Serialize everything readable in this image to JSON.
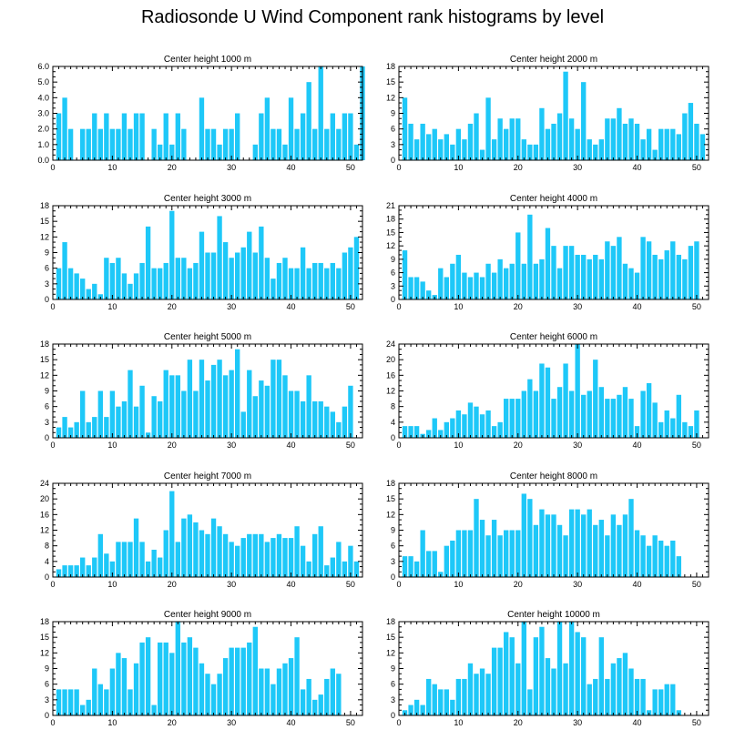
{
  "title": "Radiosonde U Wind Component rank histograms by level",
  "bar_color": "#1ec8f8",
  "chart_data": [
    {
      "type": "bar",
      "title": "Center height 1000 m",
      "xlim": [
        0,
        52
      ],
      "ylim": [
        0,
        6
      ],
      "xticks": [
        0,
        10,
        20,
        30,
        40,
        50
      ],
      "yticks": [
        0,
        1,
        2,
        3,
        4,
        5,
        6
      ],
      "ytick_labels": [
        "0.0",
        "1.0",
        "2.0",
        "3.0",
        "4.0",
        "5.0",
        "6.0"
      ],
      "values": [
        3,
        4,
        2,
        0,
        2,
        2,
        3,
        2,
        3,
        2,
        2,
        3,
        2,
        3,
        3,
        0,
        2,
        1,
        3,
        1,
        3,
        2,
        0,
        0,
        4,
        2,
        2,
        1,
        2,
        2,
        3,
        0,
        0,
        1,
        3,
        4,
        2,
        2,
        1,
        4,
        2,
        3,
        5,
        2,
        6,
        2,
        3,
        2,
        3,
        3,
        1,
        6
      ]
    },
    {
      "type": "bar",
      "title": "Center height 2000 m",
      "xlim": [
        0,
        52
      ],
      "ylim": [
        0,
        18
      ],
      "xticks": [
        0,
        10,
        20,
        30,
        40,
        50
      ],
      "yticks": [
        0,
        3,
        6,
        9,
        12,
        15,
        18
      ],
      "ytick_labels": [
        "0",
        "3",
        "6",
        "9",
        "12",
        "15",
        "18"
      ],
      "values": [
        12,
        7,
        4,
        7,
        5,
        6,
        4,
        5,
        3,
        6,
        4,
        7,
        9,
        2,
        12,
        4,
        8,
        6,
        8,
        8,
        4,
        3,
        3,
        10,
        6,
        7,
        9,
        17,
        8,
        6,
        15,
        4,
        3,
        4,
        8,
        8,
        10,
        7,
        8,
        7,
        4,
        6,
        2,
        6,
        6,
        6,
        5,
        9,
        11,
        7,
        5
      ]
    },
    {
      "type": "bar",
      "title": "Center height 3000 m",
      "xlim": [
        0,
        52
      ],
      "ylim": [
        0,
        18
      ],
      "xticks": [
        0,
        10,
        20,
        30,
        40,
        50
      ],
      "yticks": [
        0,
        3,
        6,
        9,
        12,
        15,
        18
      ],
      "ytick_labels": [
        "0",
        "3",
        "6",
        "9",
        "12",
        "15",
        "18"
      ],
      "values": [
        6,
        11,
        6,
        5,
        4,
        2,
        3,
        1,
        8,
        7,
        8,
        5,
        3,
        5,
        7,
        14,
        6,
        6,
        7,
        17,
        8,
        8,
        6,
        7,
        13,
        9,
        9,
        16,
        11,
        8,
        9,
        10,
        13,
        9,
        14,
        8,
        4,
        7,
        8,
        6,
        6,
        10,
        6,
        7,
        7,
        6,
        7,
        6,
        9,
        10,
        12
      ]
    },
    {
      "type": "bar",
      "title": "Center height 4000 m",
      "xlim": [
        0,
        52
      ],
      "ylim": [
        0,
        21
      ],
      "xticks": [
        0,
        10,
        20,
        30,
        40,
        50
      ],
      "yticks": [
        0,
        3,
        6,
        9,
        12,
        15,
        18,
        21
      ],
      "ytick_labels": [
        "0",
        "3",
        "6",
        "9",
        "12",
        "15",
        "18",
        "21"
      ],
      "values": [
        11,
        5,
        5,
        4,
        2,
        1,
        7,
        5,
        8,
        10,
        6,
        5,
        6,
        5,
        8,
        6,
        9,
        7,
        8,
        15,
        8,
        19,
        8,
        9,
        16,
        12,
        7,
        12,
        12,
        10,
        10,
        9,
        10,
        9,
        13,
        12,
        14,
        8,
        7,
        6,
        14,
        13,
        10,
        9,
        11,
        13,
        10,
        9,
        12,
        13
      ]
    },
    {
      "type": "bar",
      "title": "Center height 5000 m",
      "xlim": [
        0,
        52
      ],
      "ylim": [
        0,
        18
      ],
      "xticks": [
        0,
        10,
        20,
        30,
        40,
        50
      ],
      "yticks": [
        0,
        3,
        6,
        9,
        12,
        15,
        18
      ],
      "ytick_labels": [
        "0",
        "3",
        "6",
        "9",
        "12",
        "15",
        "18"
      ],
      "values": [
        2,
        4,
        2,
        3,
        9,
        3,
        4,
        9,
        4,
        9,
        6,
        7,
        13,
        6,
        10,
        1,
        8,
        7,
        13,
        12,
        12,
        9,
        15,
        9,
        15,
        11,
        14,
        15,
        12,
        13,
        17,
        5,
        13,
        8,
        11,
        10,
        15,
        15,
        12,
        9,
        9,
        7,
        12,
        7,
        7,
        6,
        5,
        3,
        6,
        10
      ]
    },
    {
      "type": "bar",
      "title": "Center height 6000 m",
      "xlim": [
        0,
        52
      ],
      "ylim": [
        0,
        24
      ],
      "xticks": [
        0,
        10,
        20,
        30,
        40,
        50
      ],
      "yticks": [
        0,
        4,
        8,
        12,
        16,
        20,
        24
      ],
      "ytick_labels": [
        "0",
        "4",
        "8",
        "12",
        "16",
        "20",
        "24"
      ],
      "values": [
        3,
        3,
        3,
        1,
        2,
        5,
        2,
        4,
        5,
        7,
        6,
        9,
        8,
        6,
        7,
        3,
        4,
        10,
        10,
        10,
        12,
        15,
        12,
        19,
        18,
        10,
        13,
        19,
        12,
        24,
        11,
        12,
        20,
        13,
        10,
        10,
        11,
        13,
        10,
        3,
        12,
        14,
        9,
        4,
        7,
        5,
        11,
        4,
        3,
        7
      ]
    },
    {
      "type": "bar",
      "title": "Center height 7000 m",
      "xlim": [
        0,
        52
      ],
      "ylim": [
        0,
        24
      ],
      "xticks": [
        0,
        10,
        20,
        30,
        40,
        50
      ],
      "yticks": [
        0,
        4,
        8,
        12,
        16,
        20,
        24
      ],
      "ytick_labels": [
        "0",
        "4",
        "8",
        "12",
        "16",
        "20",
        "24"
      ],
      "values": [
        2,
        3,
        3,
        3,
        5,
        3,
        5,
        11,
        6,
        4,
        9,
        9,
        9,
        15,
        9,
        4,
        7,
        5,
        12,
        22,
        9,
        15,
        16,
        14,
        12,
        11,
        15,
        13,
        11,
        9,
        8,
        10,
        11,
        11,
        11,
        9,
        10,
        11,
        10,
        10,
        13,
        8,
        4,
        11,
        13,
        3,
        5,
        9,
        4,
        8,
        4
      ]
    },
    {
      "type": "bar",
      "title": "Center height 8000 m",
      "xlim": [
        0,
        52
      ],
      "ylim": [
        0,
        18
      ],
      "xticks": [
        0,
        10,
        20,
        30,
        40,
        50
      ],
      "yticks": [
        0,
        3,
        6,
        9,
        12,
        15,
        18
      ],
      "ytick_labels": [
        "0",
        "3",
        "6",
        "9",
        "12",
        "15",
        "18"
      ],
      "values": [
        4,
        4,
        3,
        9,
        5,
        5,
        1,
        6,
        7,
        9,
        9,
        9,
        15,
        11,
        8,
        11,
        8,
        9,
        9,
        9,
        16,
        15,
        10,
        13,
        12,
        12,
        10,
        8,
        13,
        13,
        12,
        13,
        10,
        11,
        8,
        12,
        10,
        12,
        15,
        9,
        8,
        6,
        8,
        7,
        6,
        7,
        4
      ]
    },
    {
      "type": "bar",
      "title": "Center height 9000 m",
      "xlim": [
        0,
        52
      ],
      "ylim": [
        0,
        18
      ],
      "xticks": [
        0,
        10,
        20,
        30,
        40,
        50
      ],
      "yticks": [
        0,
        3,
        6,
        9,
        12,
        15,
        18
      ],
      "ytick_labels": [
        "0",
        "3",
        "6",
        "9",
        "12",
        "15",
        "18"
      ],
      "values": [
        5,
        5,
        5,
        5,
        2,
        3,
        9,
        6,
        5,
        9,
        12,
        11,
        5,
        10,
        14,
        15,
        2,
        14,
        14,
        12,
        18,
        14,
        15,
        13,
        10,
        8,
        6,
        8,
        11,
        13,
        13,
        13,
        14,
        17,
        9,
        9,
        6,
        9,
        10,
        11,
        15,
        5,
        7,
        3,
        4,
        7,
        9,
        8
      ]
    },
    {
      "type": "bar",
      "title": "Center height 10000 m",
      "xlim": [
        0,
        52
      ],
      "ylim": [
        0,
        18
      ],
      "xticks": [
        0,
        10,
        20,
        30,
        40,
        50
      ],
      "yticks": [
        0,
        3,
        6,
        9,
        12,
        15,
        18
      ],
      "ytick_labels": [
        "0",
        "3",
        "6",
        "9",
        "12",
        "15",
        "18"
      ],
      "values": [
        1,
        2,
        3,
        2,
        7,
        6,
        5,
        5,
        3,
        7,
        7,
        10,
        8,
        9,
        8,
        13,
        13,
        16,
        15,
        10,
        18,
        5,
        15,
        17,
        11,
        9,
        18,
        10,
        18,
        16,
        15,
        6,
        7,
        15,
        7,
        10,
        11,
        12,
        9,
        7,
        7,
        1,
        5,
        5,
        6,
        6,
        1
      ]
    }
  ]
}
